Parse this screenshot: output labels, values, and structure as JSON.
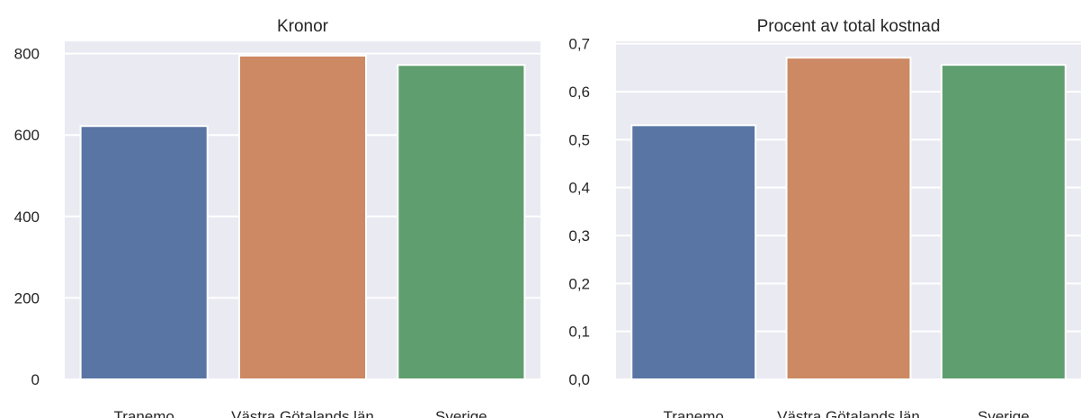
{
  "chart_data": [
    {
      "type": "bar",
      "title": "Kronor",
      "xlabel": "",
      "ylabel": "",
      "categories": [
        "Tranemo",
        "Västra Götalands län",
        "Sverige"
      ],
      "values": [
        622,
        795,
        772
      ],
      "colors": [
        "#5875a4",
        "#cc8963",
        "#5f9e6e"
      ],
      "ylim": [
        0,
        830
      ],
      "yticks": [
        0,
        200,
        400,
        600,
        800
      ],
      "ytick_labels": [
        "0",
        "200",
        "400",
        "600",
        "800"
      ],
      "grid": true,
      "background": "#eaeaf2"
    },
    {
      "type": "bar",
      "title": "Procent av total kostnad",
      "xlabel": "",
      "ylabel": "",
      "categories": [
        "Tranemo",
        "Västra Götalands län",
        "Sverige"
      ],
      "values": [
        0.53,
        0.671,
        0.656
      ],
      "colors": [
        "#5875a4",
        "#cc8963",
        "#5f9e6e"
      ],
      "ylim": [
        0,
        0.705
      ],
      "yticks": [
        0,
        0.1,
        0.2,
        0.3,
        0.4,
        0.5,
        0.6,
        0.7
      ],
      "ytick_labels": [
        "0,0",
        "0,1",
        "0,2",
        "0,3",
        "0,4",
        "0,5",
        "0,6",
        "0,7"
      ],
      "grid": true,
      "background": "#eaeaf2"
    }
  ]
}
